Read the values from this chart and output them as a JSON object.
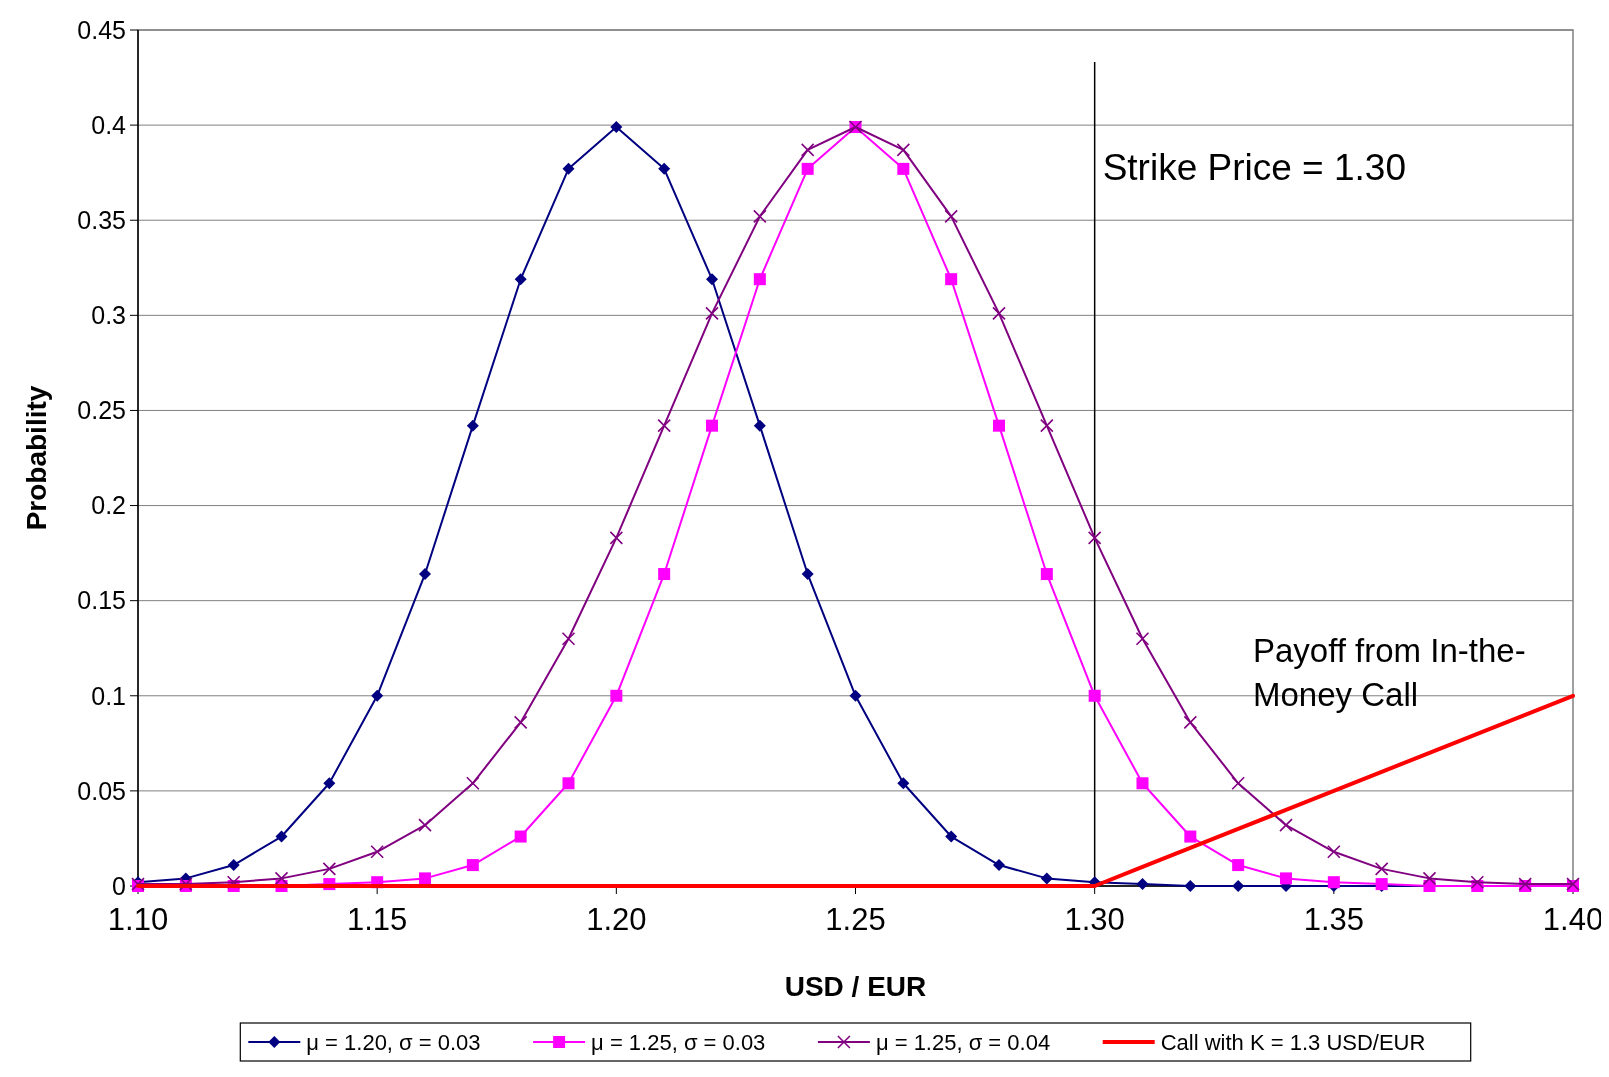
{
  "chart_data": {
    "type": "line",
    "xlabel": "USD / EUR",
    "ylabel": "Probability",
    "x": [
      1.1,
      1.11,
      1.12,
      1.13,
      1.14,
      1.15,
      1.16,
      1.17,
      1.18,
      1.19,
      1.2,
      1.21,
      1.22,
      1.23,
      1.24,
      1.25,
      1.26,
      1.27,
      1.28,
      1.29,
      1.3,
      1.31,
      1.32,
      1.33,
      1.34,
      1.35,
      1.36,
      1.37,
      1.38,
      1.39,
      1.4
    ],
    "series": [
      {
        "name": "μ = 1.20, σ = 0.03",
        "color": "#000080",
        "marker": "diamond",
        "values": [
          0.002,
          0.004,
          0.011,
          0.026,
          0.054,
          0.1,
          0.164,
          0.242,
          0.319,
          0.377,
          0.399,
          0.377,
          0.319,
          0.242,
          0.164,
          0.1,
          0.054,
          0.026,
          0.011,
          0.004,
          0.002,
          0.001,
          0,
          0,
          0,
          0,
          0,
          0,
          0,
          null,
          null
        ]
      },
      {
        "name": "μ = 1.25, σ = 0.03",
        "color": "#ff00ff",
        "marker": "square",
        "values": [
          0,
          0,
          0,
          0,
          0.001,
          0.002,
          0.004,
          0.011,
          0.026,
          0.054,
          0.1,
          0.164,
          0.242,
          0.319,
          0.377,
          0.399,
          0.377,
          0.319,
          0.242,
          0.164,
          0.1,
          0.054,
          0.026,
          0.011,
          0.004,
          0.002,
          0.001,
          0,
          0,
          0,
          0
        ]
      },
      {
        "name": "μ = 1.25, σ = 0.04",
        "color": "#800080",
        "marker": "cross",
        "values": [
          0.001,
          0.001,
          0.002,
          0.004,
          0.009,
          0.018,
          0.032,
          0.054,
          0.086,
          0.13,
          0.183,
          0.242,
          0.301,
          0.352,
          0.387,
          0.399,
          0.387,
          0.352,
          0.301,
          0.242,
          0.183,
          0.13,
          0.086,
          0.054,
          0.032,
          0.018,
          0.009,
          0.004,
          0.002,
          0.001,
          0.001
        ]
      },
      {
        "name": "Call with K = 1.3 USD/EUR",
        "color": "#ff0000",
        "marker": "none",
        "values": [
          0,
          0,
          0,
          0,
          0,
          0,
          0,
          0,
          0,
          0,
          0,
          0,
          0,
          0,
          0,
          0,
          0,
          0,
          0,
          0,
          0,
          0.01,
          0.02,
          0.03,
          0.04,
          0.05,
          0.06,
          0.07,
          0.08,
          0.09,
          0.1
        ]
      }
    ],
    "xlim": [
      1.1,
      1.4
    ],
    "xticks": [
      {
        "value": 1.1,
        "label": "1.10"
      },
      {
        "value": 1.15,
        "label": "1.15"
      },
      {
        "value": 1.2,
        "label": "1.20"
      },
      {
        "value": 1.25,
        "label": "1.25"
      },
      {
        "value": 1.3,
        "label": "1.30"
      },
      {
        "value": 1.35,
        "label": "1.35"
      },
      {
        "value": 1.4,
        "label": "1.40"
      }
    ],
    "ylim": [
      0,
      0.45
    ],
    "yticks": [
      0,
      0.05,
      0.1,
      0.15,
      0.2,
      0.25,
      0.3,
      0.35,
      0.4,
      0.45
    ],
    "grid": "y",
    "legend": "bottom",
    "ref_lines": [
      {
        "axis": "x",
        "value": 1.3,
        "label": "Strike Price = 1.30",
        "color": "#000000"
      }
    ],
    "annotations": [
      "Payoff from In-the-Money Call"
    ]
  }
}
